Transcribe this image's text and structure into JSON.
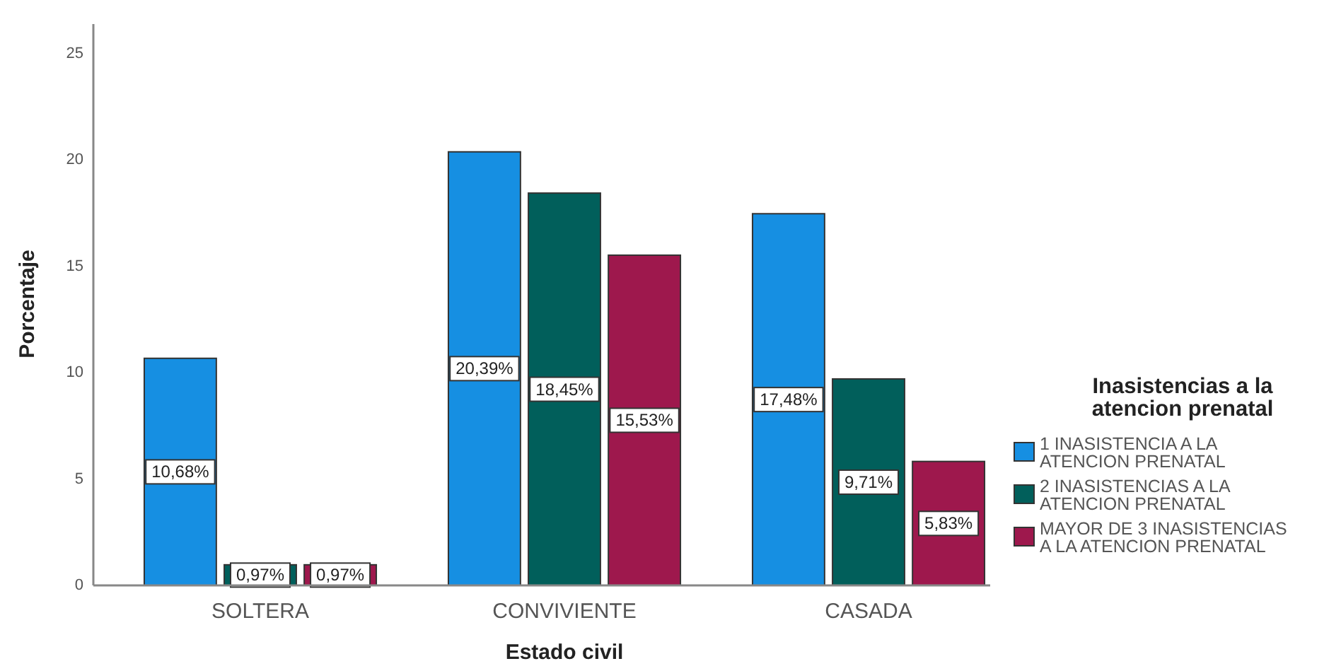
{
  "chart_data": {
    "type": "bar",
    "xlabel": "Estado civil",
    "ylabel": "Porcentaje",
    "legend_title": "Inasistencias a la atencion prenatal",
    "legend": "right",
    "categories": [
      "SOLTERA",
      "CONVIVIENTE",
      "CASADA"
    ],
    "series": [
      {
        "name": "1 INASISTENCIA A LA ATENCION PRENATAL",
        "color": "#168fe2",
        "values": [
          10.68,
          20.39,
          17.48
        ],
        "value_labels": [
          "10,68%",
          "20,39%",
          "17,48%"
        ]
      },
      {
        "name": "2 INASISTENCIAS A LA ATENCION PRENATAL",
        "color": "#015f5b",
        "values": [
          0.97,
          18.45,
          9.71
        ],
        "value_labels": [
          "0,97%",
          "18,45%",
          "9,71%"
        ]
      },
      {
        "name": "MAYOR DE 3 INASISTENCIAS A LA ATENCION PRENATAL",
        "color": "#9e184d",
        "values": [
          0.97,
          15.53,
          5.83
        ],
        "value_labels": [
          "0,97%",
          "15,53%",
          "5,83%"
        ]
      }
    ],
    "ylim": [
      0,
      26.4
    ],
    "yticks": [
      0,
      5,
      10,
      15,
      20,
      25
    ]
  }
}
